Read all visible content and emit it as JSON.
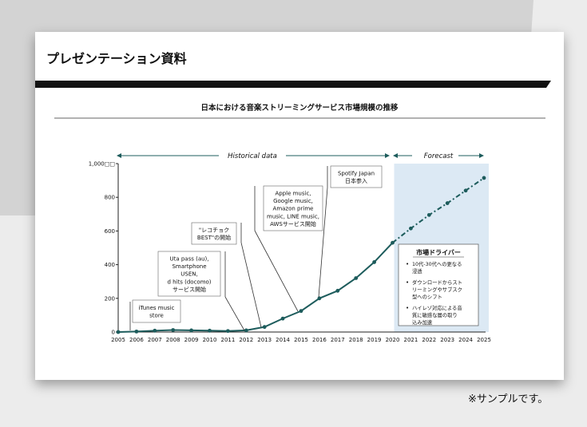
{
  "slide": {
    "title": "プレゼンテーション資料",
    "note": "※サンプルです。"
  },
  "colors": {
    "line": "#1d5c5c",
    "forecast_band": "#dce9f4",
    "header_bar": "#111111",
    "background_gray": "#d3d3d3"
  },
  "chart_data": {
    "type": "line",
    "title": "日本における音楽ストリーミングサービス市場規模の推移",
    "xlabel": "",
    "ylabel": "",
    "ylim": [
      0,
      1000
    ],
    "yticks": [
      "0",
      "200",
      "400",
      "600",
      "800",
      "1,000□□"
    ],
    "ytick_values": [
      0,
      200,
      400,
      600,
      800,
      1000
    ],
    "x": [
      "2005",
      "2006",
      "2007",
      "2008",
      "2009",
      "2010",
      "2011",
      "2012",
      "2013",
      "2014",
      "2015",
      "2016",
      "2017",
      "2018",
      "2019",
      "2020",
      "2021",
      "2022",
      "2023",
      "2024",
      "2025"
    ],
    "series": [
      {
        "values": [
          0,
          3,
          8,
          12,
          10,
          8,
          6,
          10,
          30,
          80,
          125,
          200,
          245,
          320,
          415,
          530,
          615,
          695,
          765,
          840,
          915
        ],
        "historical_end_index": 15
      }
    ],
    "periods": {
      "historical_label": "Historical data",
      "forecast_label": "Forecast",
      "forecast_start": "2020"
    },
    "grid": false,
    "annotations": [
      {
        "lines": [
          "iTunes music",
          "store"
        ],
        "year": "2005"
      },
      {
        "lines": [
          "Uta pass (au),",
          "Smartphone",
          "USEN,",
          "d hits (docomo)",
          "サービス開始"
        ],
        "year": "2012"
      },
      {
        "lines": [
          "\"レコチョク",
          "BEST\"の開始"
        ],
        "year": "2013"
      },
      {
        "lines": [
          "Apple music,",
          "Google music,",
          "Amazon prime",
          "music, LINE music,",
          "AWSサービス開始"
        ],
        "year": "2015"
      },
      {
        "lines": [
          "Spotify Japan",
          "日本参入"
        ],
        "year": "2016"
      }
    ],
    "drivers": {
      "title": "市場ドライバー",
      "items": [
        [
          "10代-30代への更なる",
          "浸透"
        ],
        [
          "ダウンロードからスト",
          "リーミングやサブスク",
          "型へのシフト"
        ],
        [
          "ハイレゾ対応による音",
          "質に敏感な層の取り",
          "込み加速"
        ]
      ]
    }
  }
}
